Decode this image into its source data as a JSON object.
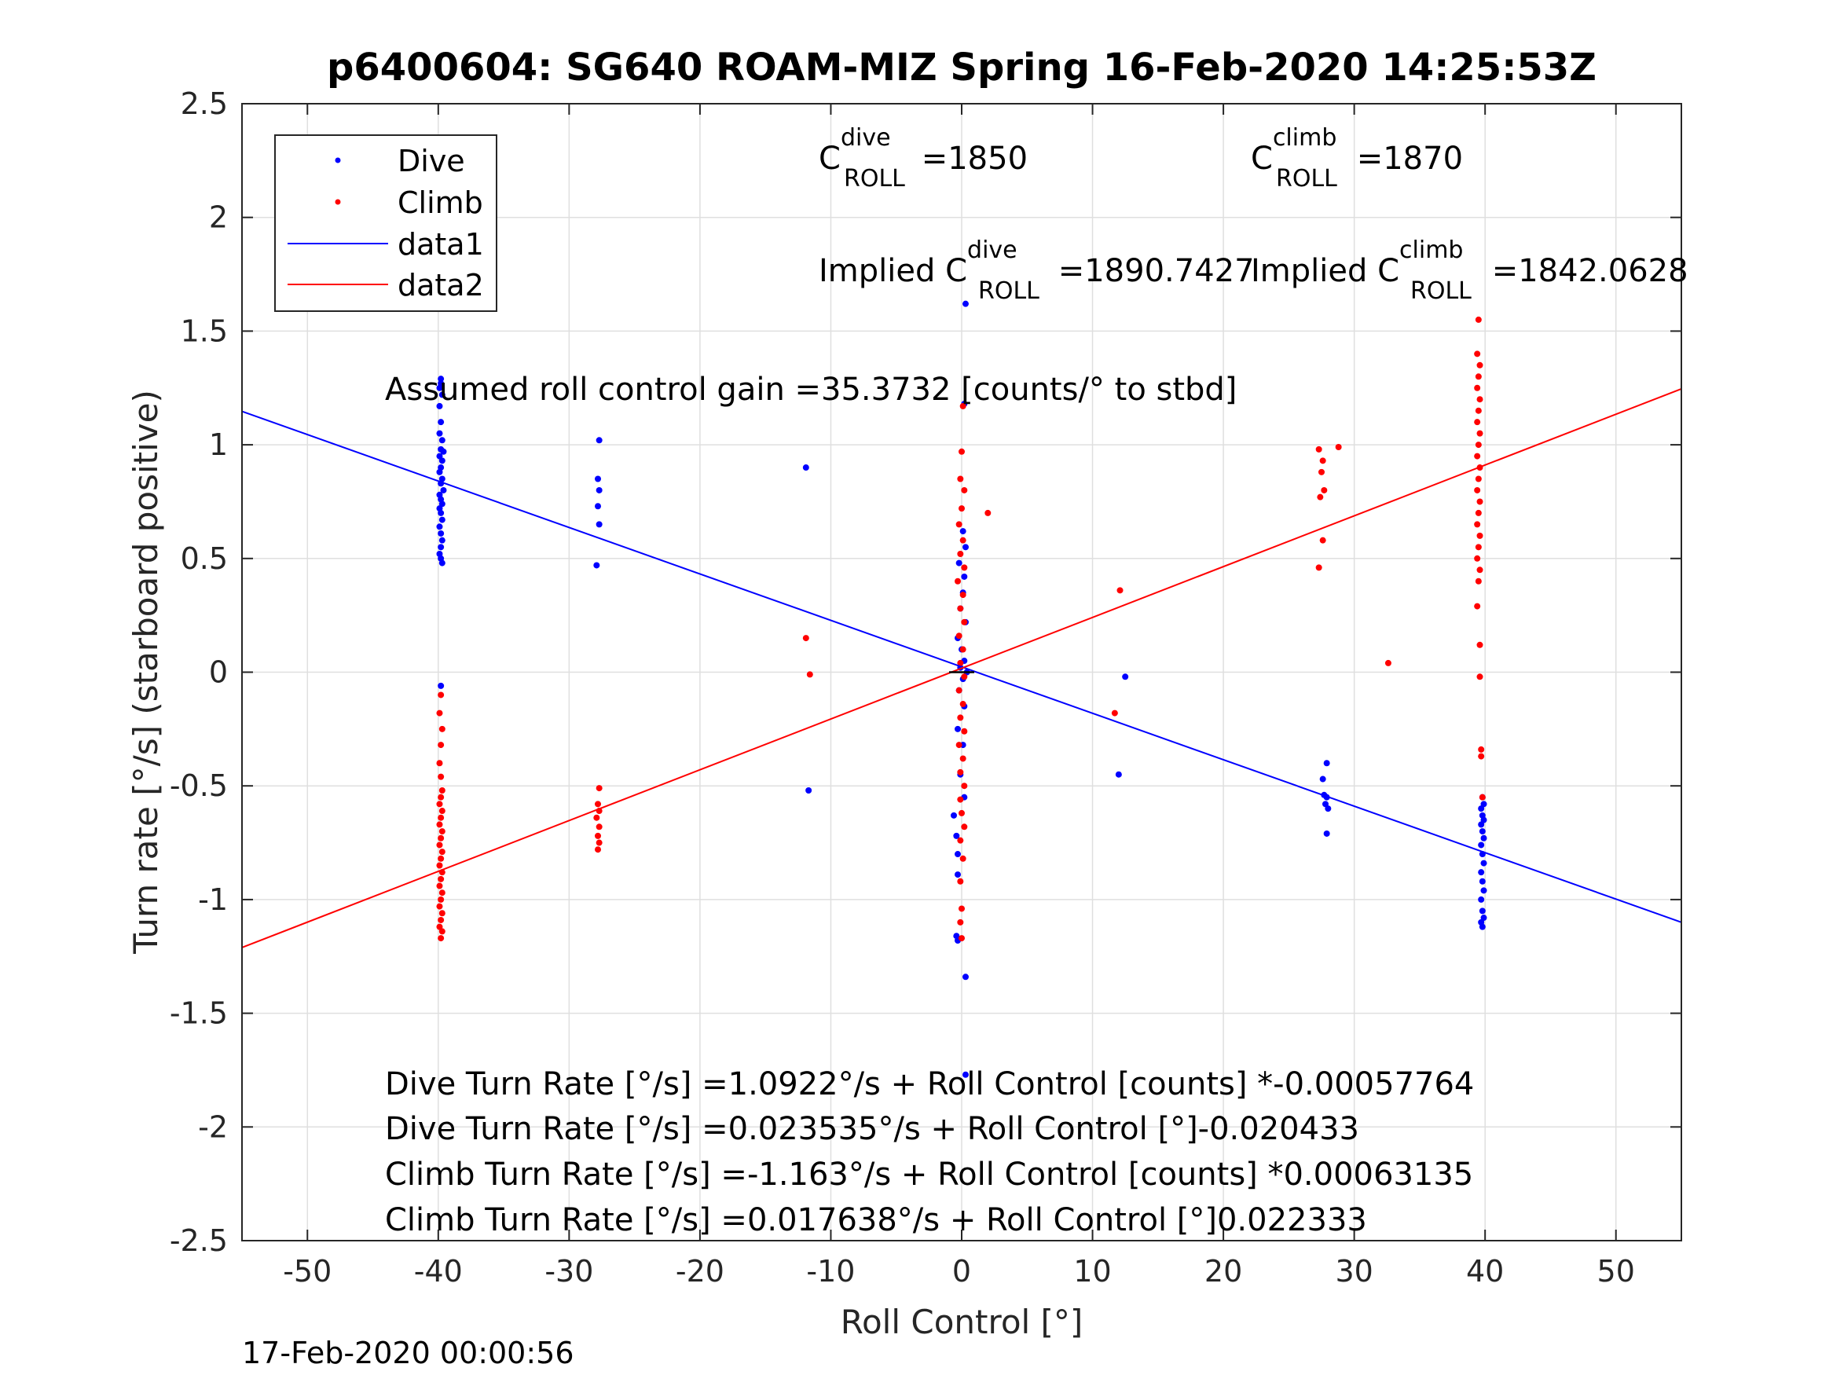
{
  "chart_data": {
    "type": "scatter",
    "title": "p6400604: SG640 ROAM-MIZ Spring 16-Feb-2020 14:25:53Z",
    "xlabel": "Roll Control [°]",
    "ylabel": "Turn rate [°/s] (starboard positive)",
    "xlim": [
      -55,
      55
    ],
    "ylim": [
      -2.5,
      2.5
    ],
    "x_ticks": [
      -50,
      -40,
      -30,
      -20,
      -10,
      0,
      10,
      20,
      30,
      40,
      50
    ],
    "y_ticks": [
      2.5,
      2,
      1.5,
      1,
      0.5,
      0,
      -0.5,
      -1,
      -1.5,
      -2,
      -2.5
    ],
    "x_tick_labels": [
      "-50",
      "-40",
      "-30",
      "-20",
      "-10",
      "0",
      "10",
      "20",
      "30",
      "40",
      "50"
    ],
    "y_tick_labels": [
      "2.5",
      "2",
      "1.5",
      "1",
      "0.5",
      "0",
      "-0.5",
      "-1",
      "-1.5",
      "-2",
      "-2.5"
    ],
    "grid": true,
    "legend_position": "top-left",
    "series": [
      {
        "name": "Dive",
        "kind": "points",
        "color": "#0000ff",
        "points": [
          [
            -39.8,
            1.29
          ],
          [
            -39.8,
            1.27
          ],
          [
            -39.9,
            1.25
          ],
          [
            -39.7,
            1.22
          ],
          [
            -39.9,
            1.17
          ],
          [
            -39.8,
            1.1
          ],
          [
            -39.9,
            1.05
          ],
          [
            -39.7,
            1.02
          ],
          [
            -39.8,
            0.98
          ],
          [
            -39.6,
            0.97
          ],
          [
            -39.9,
            0.95
          ],
          [
            -39.7,
            0.93
          ],
          [
            -39.8,
            0.9
          ],
          [
            -39.9,
            0.88
          ],
          [
            -39.7,
            0.85
          ],
          [
            -39.8,
            0.83
          ],
          [
            -39.6,
            0.8
          ],
          [
            -39.9,
            0.78
          ],
          [
            -39.8,
            0.76
          ],
          [
            -39.7,
            0.74
          ],
          [
            -39.9,
            0.72
          ],
          [
            -39.8,
            0.7
          ],
          [
            -39.7,
            0.67
          ],
          [
            -39.9,
            0.64
          ],
          [
            -39.8,
            0.61
          ],
          [
            -39.7,
            0.58
          ],
          [
            -39.8,
            0.55
          ],
          [
            -39.9,
            0.52
          ],
          [
            -39.8,
            0.5
          ],
          [
            -39.7,
            0.48
          ],
          [
            -39.8,
            1.85
          ],
          [
            -39.9,
            1.72
          ],
          [
            -39.8,
            -0.06
          ],
          [
            -27.7,
            1.02
          ],
          [
            -27.8,
            0.85
          ],
          [
            -27.7,
            0.8
          ],
          [
            -27.8,
            0.73
          ],
          [
            -27.7,
            0.65
          ],
          [
            -27.9,
            0.47
          ],
          [
            -11.9,
            0.9
          ],
          [
            -11.7,
            -0.52
          ],
          [
            0.3,
            1.62
          ],
          [
            0.2,
            1.18
          ],
          [
            0.1,
            0.62
          ],
          [
            0.3,
            0.55
          ],
          [
            -0.2,
            0.48
          ],
          [
            0.2,
            0.42
          ],
          [
            0.1,
            0.35
          ],
          [
            -0.1,
            0.28
          ],
          [
            0.3,
            0.22
          ],
          [
            -0.3,
            0.15
          ],
          [
            0.0,
            0.1
          ],
          [
            0.2,
            0.05
          ],
          [
            -0.1,
            0.02
          ],
          [
            0.4,
            0.0
          ],
          [
            0.1,
            -0.03
          ],
          [
            -0.2,
            -0.08
          ],
          [
            0.2,
            -0.15
          ],
          [
            -0.3,
            -0.25
          ],
          [
            0.1,
            -0.32
          ],
          [
            -0.1,
            -0.45
          ],
          [
            0.2,
            -0.55
          ],
          [
            -0.6,
            -0.63
          ],
          [
            -0.4,
            -0.72
          ],
          [
            -0.3,
            -0.8
          ],
          [
            -0.3,
            -0.89
          ],
          [
            -0.4,
            -1.16
          ],
          [
            -0.3,
            -1.18
          ],
          [
            0.3,
            -1.34
          ],
          [
            0.3,
            -1.77
          ],
          [
            12.5,
            -0.02
          ],
          [
            12.0,
            -0.45
          ],
          [
            27.6,
            -0.47
          ],
          [
            27.9,
            -0.4
          ],
          [
            27.7,
            -0.54
          ],
          [
            27.9,
            -0.55
          ],
          [
            27.8,
            -0.58
          ],
          [
            28.0,
            -0.6
          ],
          [
            27.9,
            -0.71
          ],
          [
            39.8,
            -0.55
          ],
          [
            39.9,
            -0.58
          ],
          [
            39.7,
            -0.6
          ],
          [
            39.8,
            -0.63
          ],
          [
            39.9,
            -0.65
          ],
          [
            39.7,
            -0.67
          ],
          [
            39.8,
            -0.7
          ],
          [
            39.9,
            -0.73
          ],
          [
            39.7,
            -0.76
          ],
          [
            39.8,
            -0.8
          ],
          [
            39.9,
            -0.84
          ],
          [
            39.7,
            -0.88
          ],
          [
            39.8,
            -0.92
          ],
          [
            39.9,
            -0.96
          ],
          [
            39.7,
            -1.0
          ],
          [
            39.8,
            -1.05
          ],
          [
            39.9,
            -1.08
          ],
          [
            39.7,
            -1.1
          ],
          [
            39.8,
            -1.12
          ]
        ]
      },
      {
        "name": "Climb",
        "kind": "points",
        "color": "#ff0000",
        "points": [
          [
            -39.8,
            -0.1
          ],
          [
            -39.9,
            -0.18
          ],
          [
            -39.7,
            -0.25
          ],
          [
            -39.8,
            -0.32
          ],
          [
            -39.9,
            -0.4
          ],
          [
            -39.8,
            -0.46
          ],
          [
            -39.7,
            -0.52
          ],
          [
            -39.8,
            -0.55
          ],
          [
            -39.9,
            -0.58
          ],
          [
            -39.7,
            -0.61
          ],
          [
            -39.8,
            -0.64
          ],
          [
            -39.9,
            -0.67
          ],
          [
            -39.7,
            -0.7
          ],
          [
            -39.8,
            -0.73
          ],
          [
            -39.9,
            -0.76
          ],
          [
            -39.7,
            -0.79
          ],
          [
            -39.8,
            -0.82
          ],
          [
            -39.9,
            -0.85
          ],
          [
            -39.7,
            -0.88
          ],
          [
            -39.8,
            -0.91
          ],
          [
            -39.9,
            -0.94
          ],
          [
            -39.7,
            -0.97
          ],
          [
            -39.8,
            -1.0
          ],
          [
            -39.9,
            -1.03
          ],
          [
            -39.7,
            -1.06
          ],
          [
            -39.8,
            -1.09
          ],
          [
            -39.9,
            -1.12
          ],
          [
            -39.7,
            -1.14
          ],
          [
            -39.8,
            -1.17
          ],
          [
            -27.7,
            -0.51
          ],
          [
            -27.8,
            -0.58
          ],
          [
            -27.7,
            -0.61
          ],
          [
            -27.9,
            -0.64
          ],
          [
            -27.7,
            -0.68
          ],
          [
            -27.8,
            -0.72
          ],
          [
            -27.7,
            -0.75
          ],
          [
            -27.8,
            -0.78
          ],
          [
            -11.9,
            0.15
          ],
          [
            -11.6,
            -0.01
          ],
          [
            0.1,
            1.17
          ],
          [
            0.0,
            0.97
          ],
          [
            -0.1,
            0.85
          ],
          [
            0.2,
            0.8
          ],
          [
            0.0,
            0.72
          ],
          [
            -0.2,
            0.65
          ],
          [
            0.1,
            0.58
          ],
          [
            -0.1,
            0.52
          ],
          [
            0.2,
            0.46
          ],
          [
            -0.3,
            0.4
          ],
          [
            0.1,
            0.34
          ],
          [
            -0.1,
            0.28
          ],
          [
            0.2,
            0.22
          ],
          [
            -0.2,
            0.16
          ],
          [
            0.1,
            0.1
          ],
          [
            -0.1,
            0.04
          ],
          [
            0.2,
            -0.02
          ],
          [
            -0.2,
            -0.08
          ],
          [
            0.1,
            -0.14
          ],
          [
            -0.1,
            -0.2
          ],
          [
            0.2,
            -0.26
          ],
          [
            -0.2,
            -0.32
          ],
          [
            0.1,
            -0.38
          ],
          [
            -0.1,
            -0.44
          ],
          [
            0.2,
            -0.5
          ],
          [
            -0.1,
            -0.56
          ],
          [
            0.0,
            -0.62
          ],
          [
            0.2,
            -0.68
          ],
          [
            -0.1,
            -0.74
          ],
          [
            0.1,
            -0.82
          ],
          [
            -0.1,
            -0.92
          ],
          [
            0.0,
            -1.04
          ],
          [
            -0.1,
            -1.1
          ],
          [
            0.0,
            -1.17
          ],
          [
            2.0,
            0.7
          ],
          [
            12.1,
            0.36
          ],
          [
            11.7,
            -0.18
          ],
          [
            27.3,
            0.98
          ],
          [
            27.6,
            0.93
          ],
          [
            27.5,
            0.88
          ],
          [
            27.7,
            0.8
          ],
          [
            27.4,
            0.77
          ],
          [
            27.6,
            0.58
          ],
          [
            27.3,
            0.46
          ],
          [
            28.8,
            0.99
          ],
          [
            32.6,
            0.04
          ],
          [
            39.5,
            1.55
          ],
          [
            39.4,
            1.4
          ],
          [
            39.6,
            1.35
          ],
          [
            39.5,
            1.3
          ],
          [
            39.4,
            1.25
          ],
          [
            39.6,
            1.2
          ],
          [
            39.5,
            1.15
          ],
          [
            39.4,
            1.1
          ],
          [
            39.6,
            1.05
          ],
          [
            39.5,
            1.0
          ],
          [
            39.4,
            0.95
          ],
          [
            39.6,
            0.9
          ],
          [
            39.5,
            0.85
          ],
          [
            39.4,
            0.8
          ],
          [
            39.6,
            0.75
          ],
          [
            39.5,
            0.7
          ],
          [
            39.4,
            0.65
          ],
          [
            39.6,
            0.6
          ],
          [
            39.5,
            0.55
          ],
          [
            39.4,
            0.5
          ],
          [
            39.6,
            0.45
          ],
          [
            39.5,
            0.4
          ],
          [
            39.4,
            0.29
          ],
          [
            39.6,
            0.12
          ],
          [
            39.6,
            -0.02
          ],
          [
            39.7,
            -0.34
          ],
          [
            39.7,
            -0.37
          ],
          [
            39.8,
            -0.55
          ]
        ]
      },
      {
        "name": "data1",
        "kind": "line",
        "color": "#0000ff",
        "points": [
          [
            -55,
            1.147
          ],
          [
            55,
            -1.1
          ]
        ]
      },
      {
        "name": "data2",
        "kind": "line",
        "color": "#ff0000",
        "points": [
          [
            -55,
            -1.211
          ],
          [
            55,
            1.246
          ]
        ]
      }
    ],
    "annotations": {
      "c_dive_label": "C",
      "c_dive_sup": "dive",
      "c_dive_sub": "ROLL",
      "c_dive_value": " =1850",
      "c_climb_label": "C",
      "c_climb_sup": "climb",
      "c_climb_sub": "ROLL",
      "c_climb_value": " =1870",
      "implied_dive_label": "Implied C",
      "implied_dive_sup": "dive",
      "implied_dive_sub": "ROLL",
      "implied_dive_value": " =1890.7427",
      "implied_climb_label": "Implied C",
      "implied_climb_sup": "climb",
      "implied_climb_sub": "ROLL",
      "implied_climb_value": " =1842.0628",
      "gain": "Assumed roll control gain =35.3732 [counts/° to stbd]",
      "eq1": "Dive Turn Rate [°/s] =1.0922°/s + Roll Control [counts] *-0.00057764",
      "eq2": "Dive Turn Rate [°/s] =0.023535°/s + Roll Control [°]-0.020433",
      "eq3": "Climb Turn Rate [°/s] =-1.163°/s + Roll Control [counts] *0.00063135",
      "eq4": "Climb Turn Rate [°/s] =0.017638°/s + Roll Control [°]0.022333"
    }
  },
  "footer_timestamp": "17-Feb-2020 00:00:56"
}
